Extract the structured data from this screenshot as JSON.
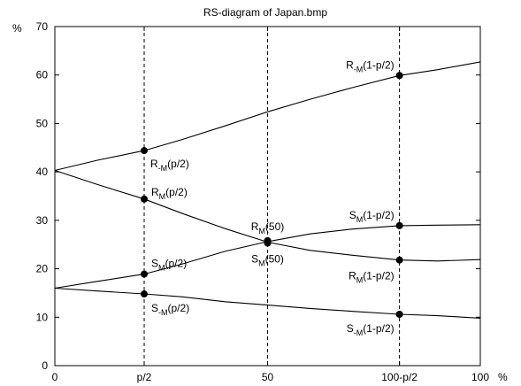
{
  "chart_data": {
    "type": "line",
    "title": "RS-diagram of Japan.bmp",
    "xlabel": "%",
    "ylabel": "%",
    "xlim": [
      0,
      100
    ],
    "ylim": [
      0,
      70
    ],
    "grid": false,
    "x_ticks": [
      {
        "value": 0,
        "label": "0"
      },
      {
        "value": 21,
        "label": "p/2"
      },
      {
        "value": 50,
        "label": "50"
      },
      {
        "value": 81,
        "label": "100-p/2"
      },
      {
        "value": 100,
        "label": "100"
      }
    ],
    "y_ticks": [
      {
        "value": 0,
        "label": "0"
      },
      {
        "value": 10,
        "label": "10"
      },
      {
        "value": 20,
        "label": "20"
      },
      {
        "value": 30,
        "label": "30"
      },
      {
        "value": 40,
        "label": "40"
      },
      {
        "value": 50,
        "label": "50"
      },
      {
        "value": 60,
        "label": "60"
      },
      {
        "value": 70,
        "label": "70"
      }
    ],
    "vlines": [
      21,
      50,
      81
    ],
    "series": [
      {
        "x": [
          0,
          10,
          21,
          30,
          40,
          50,
          60,
          70,
          81,
          90,
          100
        ],
        "y": [
          40.3,
          42.4,
          44.4,
          46.7,
          49.5,
          52.4,
          55.0,
          57.4,
          59.9,
          61.1,
          62.7
        ]
      },
      {
        "x": [
          0,
          10,
          21,
          30,
          40,
          50,
          60,
          70,
          81,
          90,
          100
        ],
        "y": [
          40.3,
          37.4,
          34.4,
          31.4,
          28.3,
          25.5,
          23.8,
          22.8,
          21.8,
          21.6,
          21.9
        ]
      },
      {
        "x": [
          0,
          10,
          21,
          30,
          40,
          50,
          60,
          70,
          81,
          90,
          100
        ],
        "y": [
          16.0,
          17.4,
          18.9,
          21.0,
          23.6,
          25.6,
          27.2,
          28.2,
          28.9,
          29.0,
          29.1
        ]
      },
      {
        "x": [
          0,
          10,
          21,
          30,
          40,
          50,
          60,
          70,
          81,
          90,
          100
        ],
        "y": [
          16.0,
          15.4,
          14.8,
          14.2,
          13.2,
          12.5,
          11.8,
          11.2,
          10.6,
          10.3,
          9.8
        ]
      }
    ],
    "markers": [
      {
        "x": 21,
        "y": 44.4,
        "label": "R",
        "sub": "-M",
        "arg": "(p/2)"
      },
      {
        "x": 21,
        "y": 34.4,
        "label": "R",
        "sub": "M",
        "arg": "(p/2)"
      },
      {
        "x": 21,
        "y": 18.9,
        "label": "S",
        "sub": "M",
        "arg": "(p/2)"
      },
      {
        "x": 21,
        "y": 14.8,
        "label": "S",
        "sub": "-M",
        "arg": "(p/2)"
      },
      {
        "x": 50,
        "y": 25.8,
        "label": "R",
        "sub": "M",
        "arg": "(50)"
      },
      {
        "x": 50,
        "y": 25.3,
        "label": "S",
        "sub": "M",
        "arg": "(50)"
      },
      {
        "x": 81,
        "y": 59.9,
        "label": "R",
        "sub": "-M",
        "arg": "(1-p/2)"
      },
      {
        "x": 81,
        "y": 28.9,
        "label": "S",
        "sub": "M",
        "arg": "(1-p/2)"
      },
      {
        "x": 81,
        "y": 21.8,
        "label": "R",
        "sub": "M",
        "arg": "(1-p/2)"
      },
      {
        "x": 81,
        "y": 10.6,
        "label": "S",
        "sub": "-M",
        "arg": "(1-p/2)"
      }
    ]
  }
}
